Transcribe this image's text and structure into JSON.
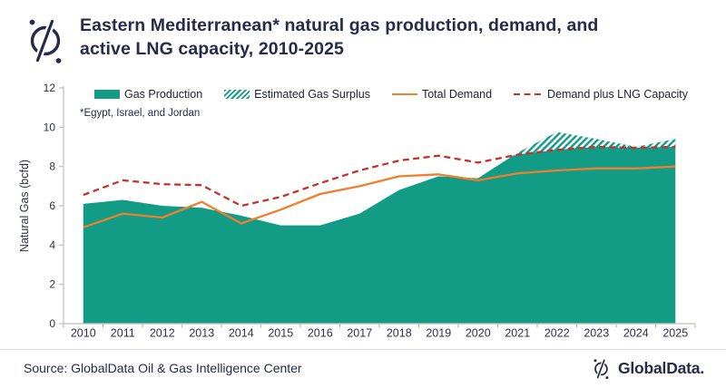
{
  "header": {
    "title_line1": "Eastern Mediterranean* natural gas production, demand, and",
    "title_line2": "active LNG capacity, 2010-2025"
  },
  "footnote": "*Egypt, Israel, and Jordan",
  "chart_data": {
    "type": "area",
    "title": "Eastern Mediterranean* natural gas production, demand, and active LNG capacity, 2010-2025",
    "xlabel": "",
    "ylabel": "Natural Gas (bcfd)",
    "ylim": [
      0,
      12
    ],
    "yticks": [
      0,
      2,
      4,
      6,
      8,
      10,
      12
    ],
    "grid": false,
    "legend_position": "top-inside",
    "x": [
      2010,
      2011,
      2012,
      2013,
      2014,
      2015,
      2016,
      2017,
      2018,
      2019,
      2020,
      2021,
      2022,
      2023,
      2024,
      2025
    ],
    "series": [
      {
        "name": "Gas Production",
        "type": "area",
        "color": "#129B85",
        "values": [
          6.1,
          6.3,
          6.0,
          5.9,
          5.5,
          5.0,
          5.0,
          5.6,
          6.8,
          7.5,
          7.4,
          8.7,
          9.75,
          9.4,
          9.0,
          9.4
        ]
      },
      {
        "name": "Estimated Gas Surplus",
        "type": "area-hatched",
        "color": "#129B85",
        "values": [
          0,
          0,
          0,
          0,
          0,
          0,
          0,
          0,
          0,
          0,
          0,
          0.1,
          0.9,
          0.4,
          0.05,
          0.4
        ]
      },
      {
        "name": "Total Demand",
        "type": "line",
        "color": "#EF7F2E",
        "values": [
          4.9,
          5.6,
          5.4,
          6.2,
          5.1,
          5.8,
          6.6,
          7.0,
          7.5,
          7.6,
          7.3,
          7.65,
          7.8,
          7.9,
          7.9,
          8.0
        ]
      },
      {
        "name": "Demand plus LNG Capacity",
        "type": "line-dashed",
        "color": "#C5322A",
        "values": [
          6.55,
          7.3,
          7.1,
          7.05,
          6.0,
          6.45,
          7.15,
          7.8,
          8.3,
          8.55,
          8.2,
          8.6,
          8.85,
          9.0,
          8.95,
          9.0
        ]
      }
    ]
  },
  "footer": {
    "source": "Source: GlobalData Oil & Gas Intelligence Center",
    "brand": "GlobalData."
  },
  "colors": {
    "teal": "#129B85",
    "orange": "#EF7F2E",
    "red": "#C5322A",
    "navy": "#262B49",
    "axis": "#BFBFBF",
    "tick_text": "#2E3247",
    "divider": "#DCDCDC"
  }
}
